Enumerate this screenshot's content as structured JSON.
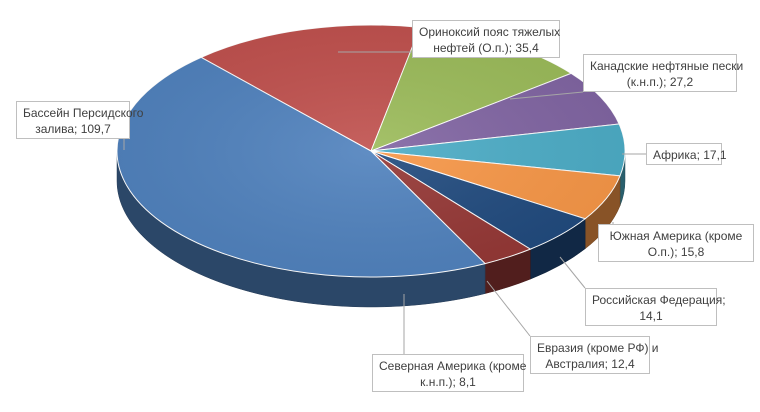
{
  "chart_data": {
    "type": "pie",
    "title": "",
    "slices": [
      {
        "label": "Ориноксий пояс тяжелых нефтей (О.п.); 35,4",
        "lines": [
          "Ориноксий пояс тяжелых",
          "нефтей (О.п.); 35,4"
        ],
        "value": 35.4,
        "color": "#C0504D"
      },
      {
        "label": "Канадские нефтяные пески (к.н.п.); 27,2",
        "lines": [
          "Канадские нефтяные пески",
          "(к.н.п.); 27,2"
        ],
        "value": 27.2,
        "color": "#9BBB59"
      },
      {
        "label": "Африка; 17,1",
        "lines": [
          "Африка; 17,1"
        ],
        "value": 17.1,
        "color": "#8064A2"
      },
      {
        "label": "Южная Америка (кроме О.п.); 15,8",
        "lines": [
          "Южная Америка (кроме",
          "О.п.); 15,8"
        ],
        "value": 15.8,
        "color": "#4BACC6"
      },
      {
        "label": "Российская Федерация; 14,1",
        "lines": [
          "Российская Федерация;",
          "14,1"
        ],
        "value": 14.1,
        "color": "#F79646"
      },
      {
        "label": "Евразия (кроме РФ) и Австралия; 12,4",
        "lines": [
          "Евразия (кроме РФ) и",
          "Австралия; 12,4"
        ],
        "value": 12.4,
        "color": "#1F497D"
      },
      {
        "label": "Северная Америка (кроме к.н.п.); 8,1",
        "lines": [
          "Северная Америка (кроме",
          "к.н.п.); 8,1"
        ],
        "value": 8.1,
        "color": "#943634"
      },
      {
        "label": "Бассейн Персидского залива; 109,7",
        "lines": [
          "Бассейн Персидского",
          "залива; 109,7"
        ],
        "value": 109.7,
        "color": "#4F81BD"
      }
    ]
  }
}
